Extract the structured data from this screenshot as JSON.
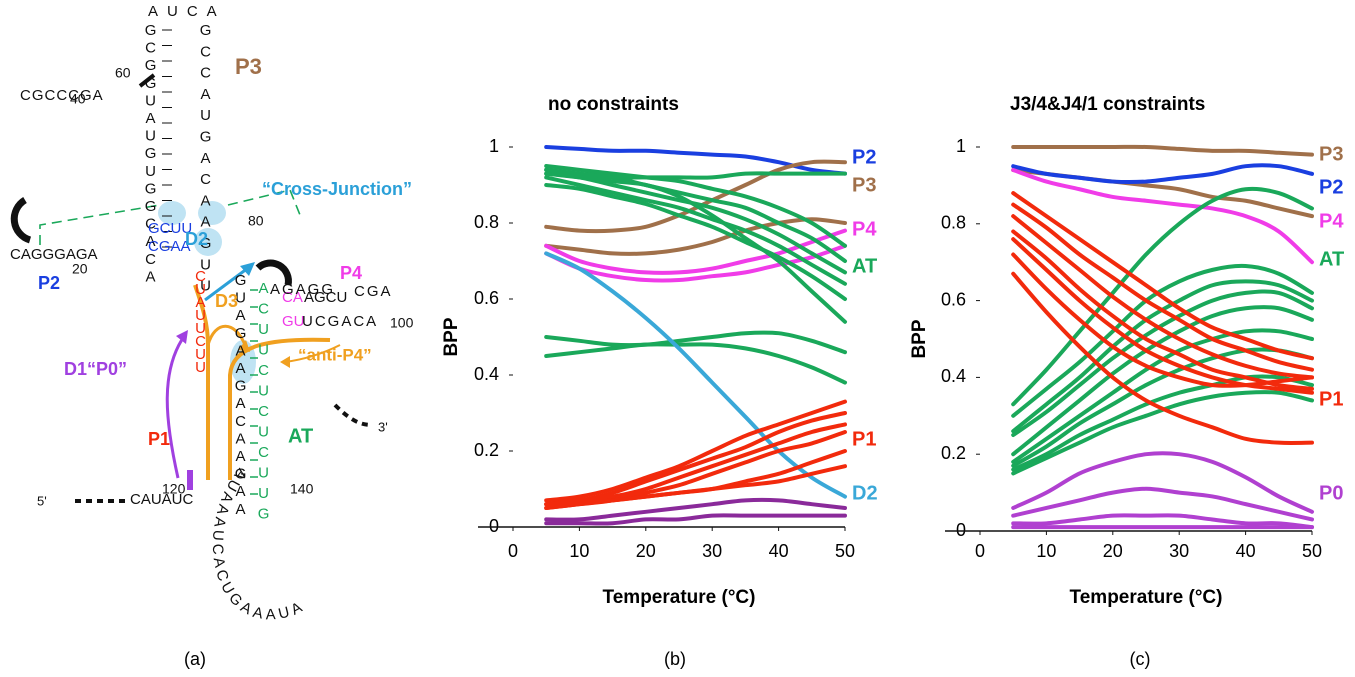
{
  "diagram": {
    "strands": [
      "AUCA",
      "GCGGUAUGUGGCACA",
      "GCCAUGACAAGUU",
      "CGCCCGA",
      "GCUU",
      "CGAA",
      "CAGGGAGA",
      "CUAUUCUU",
      "GUAGAAGACAAGAA",
      "ACUUCUCUCUUG",
      "CA",
      "AGCU",
      "CGA",
      "GU",
      "UCGACA",
      "AGAGG",
      "CAUAUC",
      "AUAAAUCACUGAAAUA"
    ],
    "labels": [
      "P3",
      "“Cross-Junction”",
      "D2",
      "P4",
      "P2",
      "D3",
      "“anti-P4”",
      "D1“P0”",
      "P1",
      "AT",
      "5'",
      "3'"
    ],
    "numbers": [
      "60",
      "40",
      "80",
      "20",
      "100",
      "120",
      "140"
    ]
  },
  "captions": [
    "(a)",
    "(b)",
    "(c)"
  ],
  "chart_data": [
    {
      "type": "line",
      "title": "no constraints",
      "x_label": "Temperature (°C)",
      "y_label": "BPP",
      "x": [
        5,
        10,
        15,
        20,
        25,
        30,
        35,
        40,
        45,
        50
      ],
      "xlim": [
        0,
        50
      ],
      "xticks": [
        0,
        10,
        20,
        30,
        40,
        50
      ],
      "ylim": [
        0,
        1
      ],
      "yticks": [
        0,
        0.2,
        0.4,
        0.6,
        0.8,
        1
      ],
      "series": [
        {
          "name": "P2",
          "color": "#1a3fe0",
          "values": [
            [
              1.0,
              0.995,
              0.99,
              0.99,
              0.985,
              0.98,
              0.975,
              0.96,
              0.94,
              0.93
            ]
          ]
        },
        {
          "name": "P3",
          "color": "#a0704a",
          "values": [
            [
              0.79,
              0.78,
              0.78,
              0.79,
              0.82,
              0.86,
              0.9,
              0.94,
              0.96,
              0.96
            ],
            [
              0.74,
              0.73,
              0.72,
              0.72,
              0.73,
              0.75,
              0.78,
              0.8,
              0.81,
              0.8
            ]
          ]
        },
        {
          "name": "P4",
          "color": "#f03ce8",
          "values": [
            [
              0.74,
              0.7,
              0.68,
              0.67,
              0.67,
              0.68,
              0.7,
              0.72,
              0.75,
              0.78
            ],
            [
              0.72,
              0.68,
              0.66,
              0.65,
              0.65,
              0.66,
              0.67,
              0.69,
              0.71,
              0.74
            ]
          ]
        },
        {
          "name": "AT",
          "color": "#1aa85a",
          "values": [
            [
              0.95,
              0.94,
              0.93,
              0.92,
              0.91,
              0.89,
              0.87,
              0.84,
              0.8,
              0.74
            ],
            [
              0.94,
              0.93,
              0.92,
              0.9,
              0.88,
              0.86,
              0.84,
              0.8,
              0.76,
              0.7
            ],
            [
              0.93,
              0.92,
              0.9,
              0.88,
              0.86,
              0.84,
              0.81,
              0.77,
              0.72,
              0.67
            ],
            [
              0.92,
              0.9,
              0.88,
              0.86,
              0.84,
              0.81,
              0.78,
              0.74,
              0.69,
              0.64
            ],
            [
              0.9,
              0.89,
              0.87,
              0.85,
              0.82,
              0.79,
              0.75,
              0.71,
              0.66,
              0.6
            ],
            [
              0.94,
              0.93,
              0.92,
              0.92,
              0.92,
              0.92,
              0.93,
              0.93,
              0.93,
              0.93
            ],
            [
              0.93,
              0.92,
              0.91,
              0.9,
              0.87,
              0.82,
              0.76,
              0.7,
              0.62,
              0.54
            ],
            [
              0.5,
              0.49,
              0.48,
              0.48,
              0.49,
              0.5,
              0.51,
              0.51,
              0.49,
              0.46
            ],
            [
              0.45,
              0.46,
              0.47,
              0.48,
              0.48,
              0.48,
              0.47,
              0.45,
              0.42,
              0.38
            ]
          ]
        },
        {
          "name": "D2",
          "color": "#3aa8d8",
          "values": [
            [
              0.72,
              0.68,
              0.62,
              0.55,
              0.47,
              0.38,
              0.29,
              0.2,
              0.13,
              0.08
            ]
          ]
        },
        {
          "name": "P1",
          "color": "#f22a0c",
          "values": [
            [
              0.07,
              0.08,
              0.1,
              0.13,
              0.16,
              0.2,
              0.24,
              0.27,
              0.3,
              0.33
            ],
            [
              0.06,
              0.07,
              0.09,
              0.12,
              0.15,
              0.18,
              0.21,
              0.25,
              0.28,
              0.3
            ],
            [
              0.06,
              0.07,
              0.08,
              0.1,
              0.13,
              0.16,
              0.19,
              0.22,
              0.25,
              0.27
            ],
            [
              0.05,
              0.06,
              0.07,
              0.09,
              0.11,
              0.14,
              0.17,
              0.2,
              0.22,
              0.25
            ],
            [
              0.05,
              0.06,
              0.07,
              0.08,
              0.09,
              0.1,
              0.11,
              0.12,
              0.14,
              0.16
            ],
            [
              0.06,
              0.065,
              0.07,
              0.08,
              0.09,
              0.1,
              0.12,
              0.14,
              0.17,
              0.2
            ]
          ]
        },
        {
          "color": "#8a2a9a",
          "values": [
            [
              0.02,
              0.02,
              0.03,
              0.04,
              0.05,
              0.06,
              0.07,
              0.07,
              0.06,
              0.05
            ],
            [
              0.01,
              0.01,
              0.01,
              0.02,
              0.02,
              0.03,
              0.03,
              0.03,
              0.03,
              0.03
            ]
          ]
        }
      ]
    },
    {
      "type": "line",
      "title": "J3/4&J4/1 constraints",
      "x_label": "Temperature (°C)",
      "y_label": "BPP",
      "x": [
        5,
        10,
        15,
        20,
        25,
        30,
        35,
        40,
        45,
        50
      ],
      "xlim": [
        0,
        50
      ],
      "xticks": [
        0,
        10,
        20,
        30,
        40,
        50
      ],
      "ylim": [
        0,
        1
      ],
      "yticks": [
        0,
        0.2,
        0.4,
        0.6,
        0.8,
        1
      ],
      "series": [
        {
          "name": "P3",
          "color": "#a0704a",
          "values": [
            [
              1.0,
              1.0,
              1.0,
              1.0,
              1.0,
              0.995,
              0.99,
              0.99,
              0.985,
              0.98
            ],
            [
              0.94,
              0.93,
              0.92,
              0.91,
              0.9,
              0.89,
              0.87,
              0.86,
              0.84,
              0.82
            ]
          ]
        },
        {
          "name": "P2",
          "color": "#1a3fe0",
          "values": [
            [
              0.95,
              0.93,
              0.92,
              0.91,
              0.91,
              0.92,
              0.93,
              0.95,
              0.95,
              0.93
            ]
          ]
        },
        {
          "name": "P4",
          "color": "#f03ce8",
          "values": [
            [
              0.94,
              0.91,
              0.89,
              0.87,
              0.86,
              0.85,
              0.84,
              0.82,
              0.78,
              0.7
            ]
          ]
        },
        {
          "name": "AT",
          "color": "#1aa85a",
          "values": [
            [
              0.33,
              0.42,
              0.52,
              0.62,
              0.72,
              0.8,
              0.86,
              0.89,
              0.88,
              0.84
            ],
            [
              0.3,
              0.37,
              0.44,
              0.52,
              0.6,
              0.65,
              0.68,
              0.69,
              0.67,
              0.62
            ],
            [
              0.26,
              0.33,
              0.4,
              0.48,
              0.55,
              0.6,
              0.64,
              0.65,
              0.64,
              0.6
            ],
            [
              0.25,
              0.31,
              0.38,
              0.45,
              0.51,
              0.56,
              0.6,
              0.62,
              0.62,
              0.58
            ],
            [
              0.2,
              0.27,
              0.34,
              0.41,
              0.47,
              0.52,
              0.56,
              0.58,
              0.58,
              0.55
            ],
            [
              0.18,
              0.24,
              0.3,
              0.36,
              0.42,
              0.47,
              0.5,
              0.52,
              0.52,
              0.5
            ],
            [
              0.17,
              0.22,
              0.28,
              0.33,
              0.38,
              0.42,
              0.45,
              0.47,
              0.47,
              0.45
            ],
            [
              0.16,
              0.2,
              0.25,
              0.29,
              0.33,
              0.36,
              0.38,
              0.4,
              0.4,
              0.38
            ],
            [
              0.15,
              0.19,
              0.23,
              0.27,
              0.3,
              0.33,
              0.35,
              0.36,
              0.36,
              0.34
            ]
          ]
        },
        {
          "name": "P1",
          "color": "#f22a0c",
          "values": [
            [
              0.88,
              0.82,
              0.76,
              0.7,
              0.64,
              0.58,
              0.53,
              0.5,
              0.47,
              0.45
            ],
            [
              0.85,
              0.79,
              0.72,
              0.66,
              0.6,
              0.55,
              0.5,
              0.47,
              0.44,
              0.42
            ],
            [
              0.82,
              0.75,
              0.68,
              0.61,
              0.55,
              0.5,
              0.46,
              0.43,
              0.41,
              0.4
            ],
            [
              0.78,
              0.71,
              0.63,
              0.56,
              0.5,
              0.46,
              0.42,
              0.4,
              0.38,
              0.37
            ],
            [
              0.76,
              0.68,
              0.6,
              0.53,
              0.47,
              0.43,
              0.4,
              0.38,
              0.37,
              0.36
            ],
            [
              0.72,
              0.63,
              0.55,
              0.48,
              0.43,
              0.4,
              0.38,
              0.38,
              0.39,
              0.4
            ],
            [
              0.67,
              0.57,
              0.48,
              0.4,
              0.34,
              0.3,
              0.27,
              0.24,
              0.23,
              0.23
            ]
          ]
        },
        {
          "name": "P0",
          "color": "#b040d0",
          "values": [
            [
              0.06,
              0.1,
              0.15,
              0.18,
              0.2,
              0.2,
              0.18,
              0.14,
              0.09,
              0.05
            ],
            [
              0.04,
              0.06,
              0.08,
              0.1,
              0.11,
              0.1,
              0.09,
              0.07,
              0.05,
              0.03
            ],
            [
              0.02,
              0.02,
              0.03,
              0.04,
              0.04,
              0.04,
              0.03,
              0.02,
              0.02,
              0.01
            ],
            [
              0.01,
              0.01,
              0.01,
              0.01,
              0.01,
              0.01,
              0.01,
              0.01,
              0.01,
              0.01
            ]
          ]
        }
      ]
    }
  ]
}
